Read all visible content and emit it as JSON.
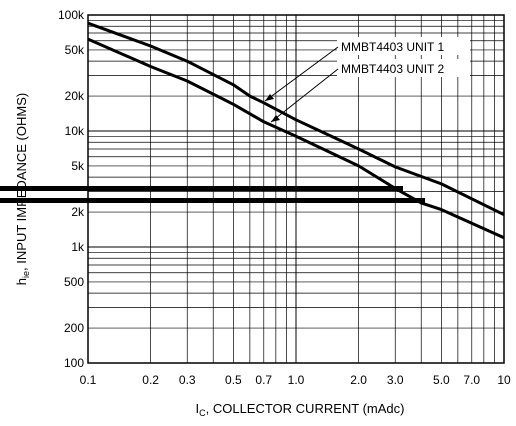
{
  "chart_data": {
    "type": "line",
    "xlabel": {
      "main": "I",
      "sub": "C",
      "rest": ", COLLECTOR CURRENT (mAdc)"
    },
    "ylabel": {
      "main": "h",
      "sub": "ie",
      "rest": ", INPUT IMPEDANCE (OHMS)"
    },
    "x_scale": "log",
    "y_scale": "log",
    "xlim": [
      0.1,
      10
    ],
    "ylim": [
      100,
      100000
    ],
    "grid": true,
    "x_ticks": [
      {
        "value": 0.1,
        "label": "0.1"
      },
      {
        "value": 0.2,
        "label": "0.2"
      },
      {
        "value": 0.3,
        "label": "0.3"
      },
      {
        "value": 0.5,
        "label": "0.5"
      },
      {
        "value": 0.7,
        "label": "0.7"
      },
      {
        "value": 1.0,
        "label": "1.0"
      },
      {
        "value": 2.0,
        "label": "2.0"
      },
      {
        "value": 3.0,
        "label": "3.0"
      },
      {
        "value": 5.0,
        "label": "5.0"
      },
      {
        "value": 7.0,
        "label": "7.0"
      },
      {
        "value": 10,
        "label": "10"
      }
    ],
    "y_ticks": [
      {
        "value": 100,
        "label": "100"
      },
      {
        "value": 200,
        "label": "200"
      },
      {
        "value": 500,
        "label": "500"
      },
      {
        "value": 1000,
        "label": "1k"
      },
      {
        "value": 2000,
        "label": "2k"
      },
      {
        "value": 5000,
        "label": "5k"
      },
      {
        "value": 10000,
        "label": "10k"
      },
      {
        "value": 20000,
        "label": "20k"
      },
      {
        "value": 50000,
        "label": "50k"
      },
      {
        "value": 100000,
        "label": "100k"
      }
    ],
    "series": [
      {
        "name": "MMBT4403 UNIT 1",
        "x": [
          0.1,
          0.2,
          0.3,
          0.5,
          0.6,
          0.7,
          1.0,
          2.0,
          3.0,
          5.0,
          10
        ],
        "y": [
          85000,
          54000,
          40000,
          25000,
          20000,
          17500,
          12500,
          7000,
          4900,
          3500,
          1900
        ]
      },
      {
        "name": "MMBT4403 UNIT 2",
        "x": [
          0.1,
          0.2,
          0.3,
          0.5,
          0.7,
          1.0,
          2.0,
          3.0,
          4.0,
          5.0,
          10
        ],
        "y": [
          62000,
          36000,
          27000,
          17000,
          12000,
          9000,
          5000,
          3200,
          2400,
          2100,
          1200
        ]
      }
    ]
  }
}
